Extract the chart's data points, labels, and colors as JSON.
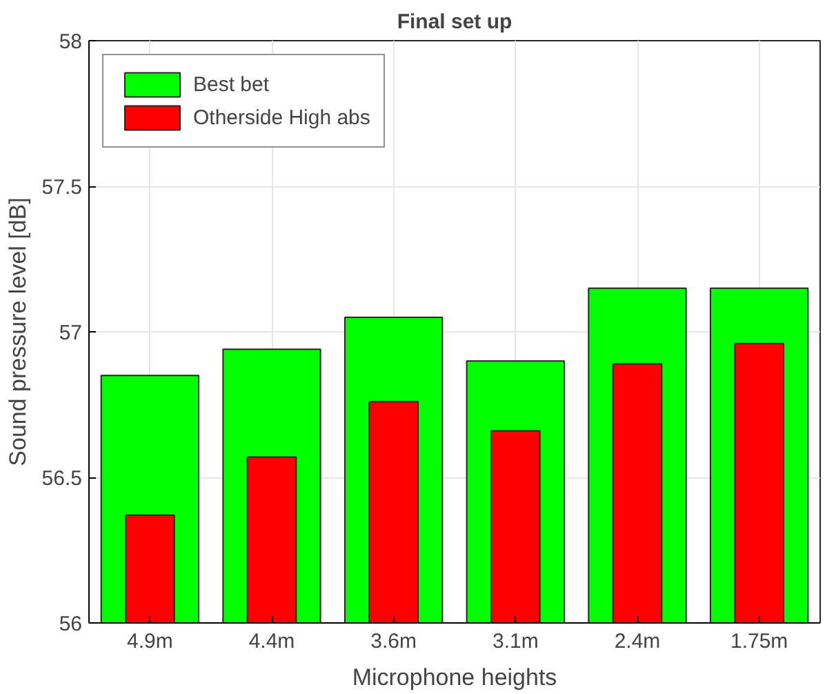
{
  "chart_data": {
    "type": "bar",
    "title": "Final set up",
    "xlabel": "Microphone heights",
    "ylabel": "Sound pressure level [dB]",
    "categories": [
      "4.9m",
      "4.4m",
      "3.6m",
      "3.1m",
      "2.4m",
      "1.75m"
    ],
    "series": [
      {
        "name": "Best bet",
        "color": "#00ff00",
        "values": [
          56.85,
          56.94,
          57.05,
          56.9,
          57.15,
          57.15
        ]
      },
      {
        "name": "Otherside High abs",
        "color": "#ff0000",
        "values": [
          56.37,
          56.57,
          56.76,
          56.66,
          56.89,
          56.96
        ]
      }
    ],
    "ylim": [
      56,
      58
    ],
    "yticks": [
      56,
      56.5,
      57,
      57.5,
      58
    ],
    "grid": true,
    "legend": "top left"
  }
}
